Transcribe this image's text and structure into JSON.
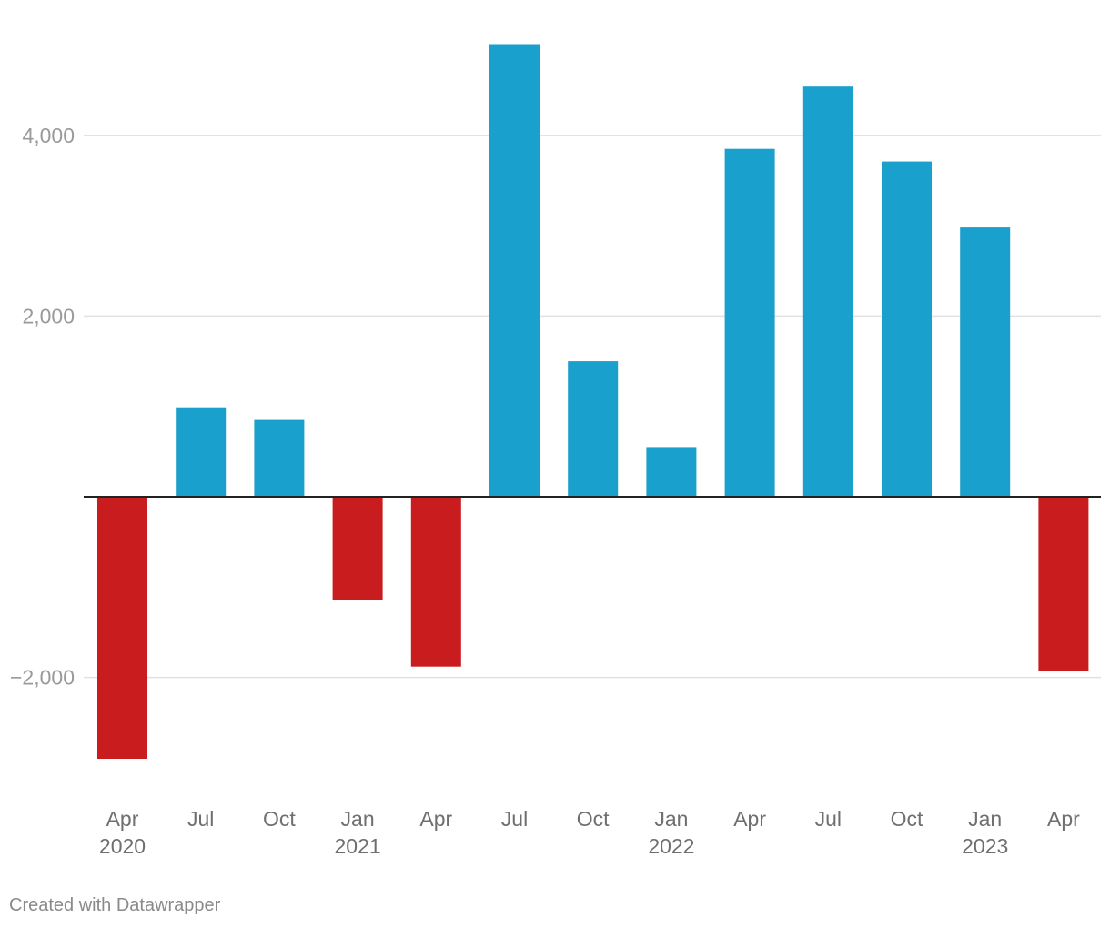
{
  "chart_data": {
    "type": "bar",
    "categories": [
      {
        "month": "Apr",
        "year": "2020"
      },
      {
        "month": "Jul",
        "year": ""
      },
      {
        "month": "Oct",
        "year": ""
      },
      {
        "month": "Jan",
        "year": "2021"
      },
      {
        "month": "Apr",
        "year": ""
      },
      {
        "month": "Jul",
        "year": ""
      },
      {
        "month": "Oct",
        "year": ""
      },
      {
        "month": "Jan",
        "year": "2022"
      },
      {
        "month": "Apr",
        "year": ""
      },
      {
        "month": "Jul",
        "year": ""
      },
      {
        "month": "Oct",
        "year": ""
      },
      {
        "month": "Jan",
        "year": "2023"
      },
      {
        "month": "Apr",
        "year": ""
      }
    ],
    "values": [
      -2900,
      990,
      850,
      -1140,
      -1880,
      5010,
      1500,
      550,
      3850,
      4540,
      3710,
      2980,
      -1930
    ],
    "ylim": [
      -3000,
      5200
    ],
    "yticks": [
      {
        "value": 4000,
        "label": "4,000"
      },
      {
        "value": 2000,
        "label": "2,000"
      },
      {
        "value": -2000,
        "label": "−2,000"
      }
    ],
    "grid": true,
    "colors": {
      "positive": "#1aa0cc",
      "negative": "#c91c1e"
    }
  },
  "footer": {
    "credit": "Created with Datawrapper"
  }
}
